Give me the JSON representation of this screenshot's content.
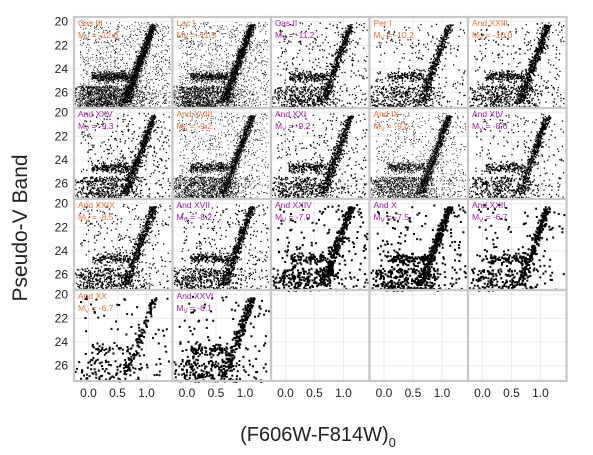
{
  "figure": {
    "ylabel": "Pseudo-V Band",
    "xlabel_main": "(F606W-F814W)",
    "xlabel_sub": "0"
  },
  "chart_data": {
    "type": "scatter",
    "xlabel": "(F606W-F814W)0",
    "ylabel": "Pseudo-V Band",
    "xlim": [
      -0.25,
      1.45
    ],
    "ylim": [
      27.3,
      19.6
    ],
    "y_inverted": true,
    "xticks": [
      "0.0",
      "0.5",
      "1.0"
    ],
    "yticks": [
      "20",
      "22",
      "24",
      "26"
    ],
    "grid": true,
    "colors": {
      "orange": "#e8743b",
      "purple": "#a020a0",
      "points": "#000000",
      "border": "#c8c8c8",
      "grid": "#ececec"
    },
    "panels": [
      {
        "name": "Cas III",
        "mv": "-12.6",
        "label_color": "orange",
        "density": 5200
      },
      {
        "name": "Lac I",
        "mv": "-11.5",
        "label_color": "orange",
        "density": 4600
      },
      {
        "name": "Cas II",
        "mv": "-11.2",
        "label_color": "purple",
        "density": 1500
      },
      {
        "name": "Per I",
        "mv": "-10.2",
        "label_color": "orange",
        "density": 1300
      },
      {
        "name": "And XXIII",
        "mv": "-10.0",
        "label_color": "orange",
        "density": 1600
      },
      {
        "name": "And XXV",
        "mv": "-9.3",
        "label_color": "purple",
        "density": 1700
      },
      {
        "name": "And XVIII",
        "mv": "-9.2",
        "label_color": "orange",
        "density": 3600
      },
      {
        "name": "And XXI",
        "mv": "-9.2",
        "label_color": "purple",
        "density": 1500
      },
      {
        "name": "And IX",
        "mv": "-9.0",
        "label_color": "orange",
        "density": 3300
      },
      {
        "name": "And XIV",
        "mv": "-8.6",
        "label_color": "purple",
        "density": 1300
      },
      {
        "name": "And XXIX",
        "mv": "-8.5",
        "label_color": "orange",
        "density": 1500
      },
      {
        "name": "And XVII",
        "mv": "-8.2",
        "label_color": "purple",
        "density": 1600
      },
      {
        "name": "And XXIV",
        "mv": "-7.9",
        "label_color": "purple",
        "density": 800
      },
      {
        "name": "And X",
        "mv": "-7.5",
        "label_color": "purple",
        "density": 900
      },
      {
        "name": "And XXII",
        "mv": "-6.7",
        "label_color": "purple",
        "density": 600
      },
      {
        "name": "And XX",
        "mv": "-6.7",
        "label_color": "orange",
        "density": 300
      },
      {
        "name": "And XXVI",
        "mv": "-6.1",
        "label_color": "purple",
        "density": 600
      }
    ]
  }
}
